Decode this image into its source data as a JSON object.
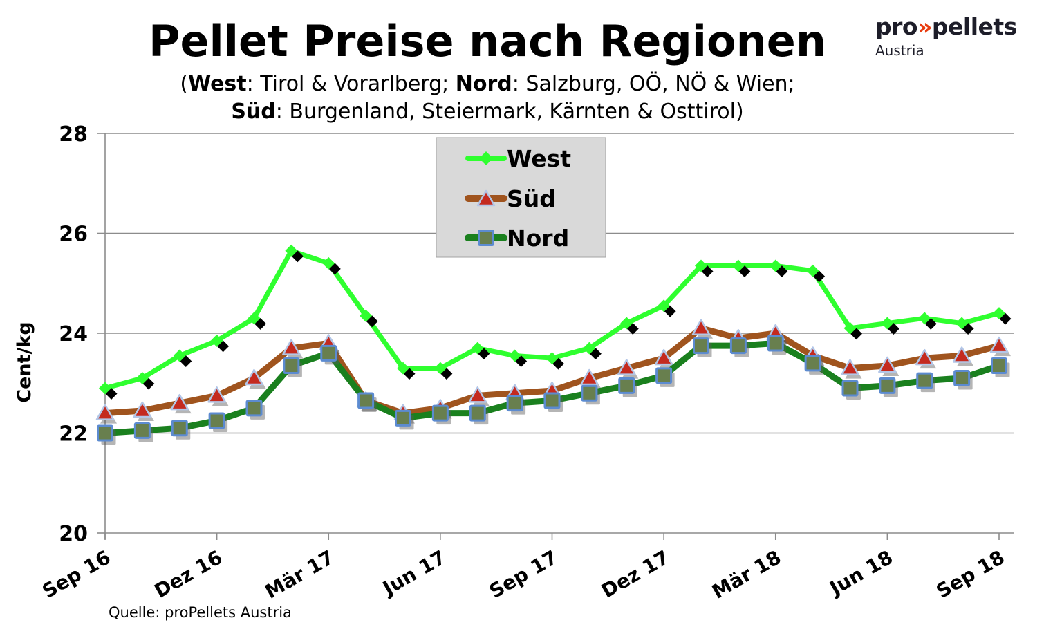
{
  "header": {
    "title": "Pellet Preise nach Regionen",
    "subtitle_lines": [
      [
        {
          "text": "(",
          "bold": false
        },
        {
          "text": "West",
          "bold": true
        },
        {
          "text": ": Tirol & Vorarlberg; ",
          "bold": false
        },
        {
          "text": "Nord",
          "bold": true
        },
        {
          "text": ": Salzburg, OÖ, NÖ & Wien;",
          "bold": false
        }
      ],
      [
        {
          "text": "Süd",
          "bold": true
        },
        {
          "text": ": Burgenland, Steiermark, Kärnten & Osttirol)",
          "bold": false
        }
      ]
    ]
  },
  "logo": {
    "part1": "pro",
    "chevrons": "»",
    "part2": "pellets",
    "subtext": "Austria",
    "dark_color": "#1d1d29",
    "accent_color": "#e83c0f"
  },
  "source_note": "Quelle: proPellets Austria",
  "chart_data": {
    "type": "line",
    "ylabel": "Cent/kg",
    "ylim": [
      20,
      28
    ],
    "yticks": [
      20,
      22,
      24,
      26,
      28
    ],
    "grid": true,
    "grid_color": "#8c8c8c",
    "legend_position": "top-center-inside",
    "legend_bg": "#d9d9d9",
    "legend_border": "#a3a3a3",
    "x_tick_step": 3,
    "x_tick_labels": [
      "Sep 16",
      "Dez 16",
      "Mär 17",
      "Jun 17",
      "Sep 17",
      "Dez 17",
      "Mär 18",
      "Jun 18",
      "Sep 18"
    ],
    "categories": [
      "Sep 16",
      "Okt 16",
      "Nov 16",
      "Dez 16",
      "Jan 17",
      "Feb 17",
      "Mär 17",
      "Apr 17",
      "Mai 17",
      "Jun 17",
      "Jul 17",
      "Aug 17",
      "Sep 17",
      "Okt 17",
      "Nov 17",
      "Dez 17",
      "Jan 18",
      "Feb 18",
      "Mär 18",
      "Apr 18",
      "Mai 18",
      "Jun 18",
      "Jul 18",
      "Aug 18",
      "Sep 18"
    ],
    "series": [
      {
        "name": "West",
        "color": "#2fff2f",
        "marker": "diamond",
        "marker_fill": "#2fff2f",
        "marker_shadow": "#000000",
        "line_width": 7,
        "values": [
          22.9,
          23.1,
          23.55,
          23.85,
          24.3,
          25.65,
          25.4,
          24.35,
          23.3,
          23.3,
          23.7,
          23.55,
          23.5,
          23.7,
          24.2,
          24.55,
          25.35,
          25.35,
          25.35,
          25.25,
          24.1,
          24.2,
          24.3,
          24.2,
          24.4
        ]
      },
      {
        "name": "Süd",
        "color": "#a0541e",
        "marker": "triangle",
        "marker_fill": "#c42a1f",
        "marker_stroke": "#b3c6e7",
        "line_width": 9,
        "values": [
          22.4,
          22.45,
          22.6,
          22.75,
          23.1,
          23.7,
          23.8,
          22.65,
          22.4,
          22.5,
          22.75,
          22.8,
          22.85,
          23.1,
          23.3,
          23.5,
          24.1,
          23.9,
          24.0,
          23.55,
          23.3,
          23.35,
          23.5,
          23.55,
          23.75
        ]
      },
      {
        "name": "Nord",
        "color": "#1a801e",
        "marker": "square",
        "marker_fill": "#687f4e",
        "marker_stroke": "#5c8bd0",
        "line_width": 9,
        "values": [
          22.0,
          22.05,
          22.1,
          22.25,
          22.5,
          23.35,
          23.6,
          22.65,
          22.3,
          22.4,
          22.4,
          22.6,
          22.65,
          22.8,
          22.95,
          23.15,
          23.75,
          23.75,
          23.8,
          23.4,
          22.9,
          22.95,
          23.05,
          23.1,
          23.35
        ]
      }
    ]
  }
}
